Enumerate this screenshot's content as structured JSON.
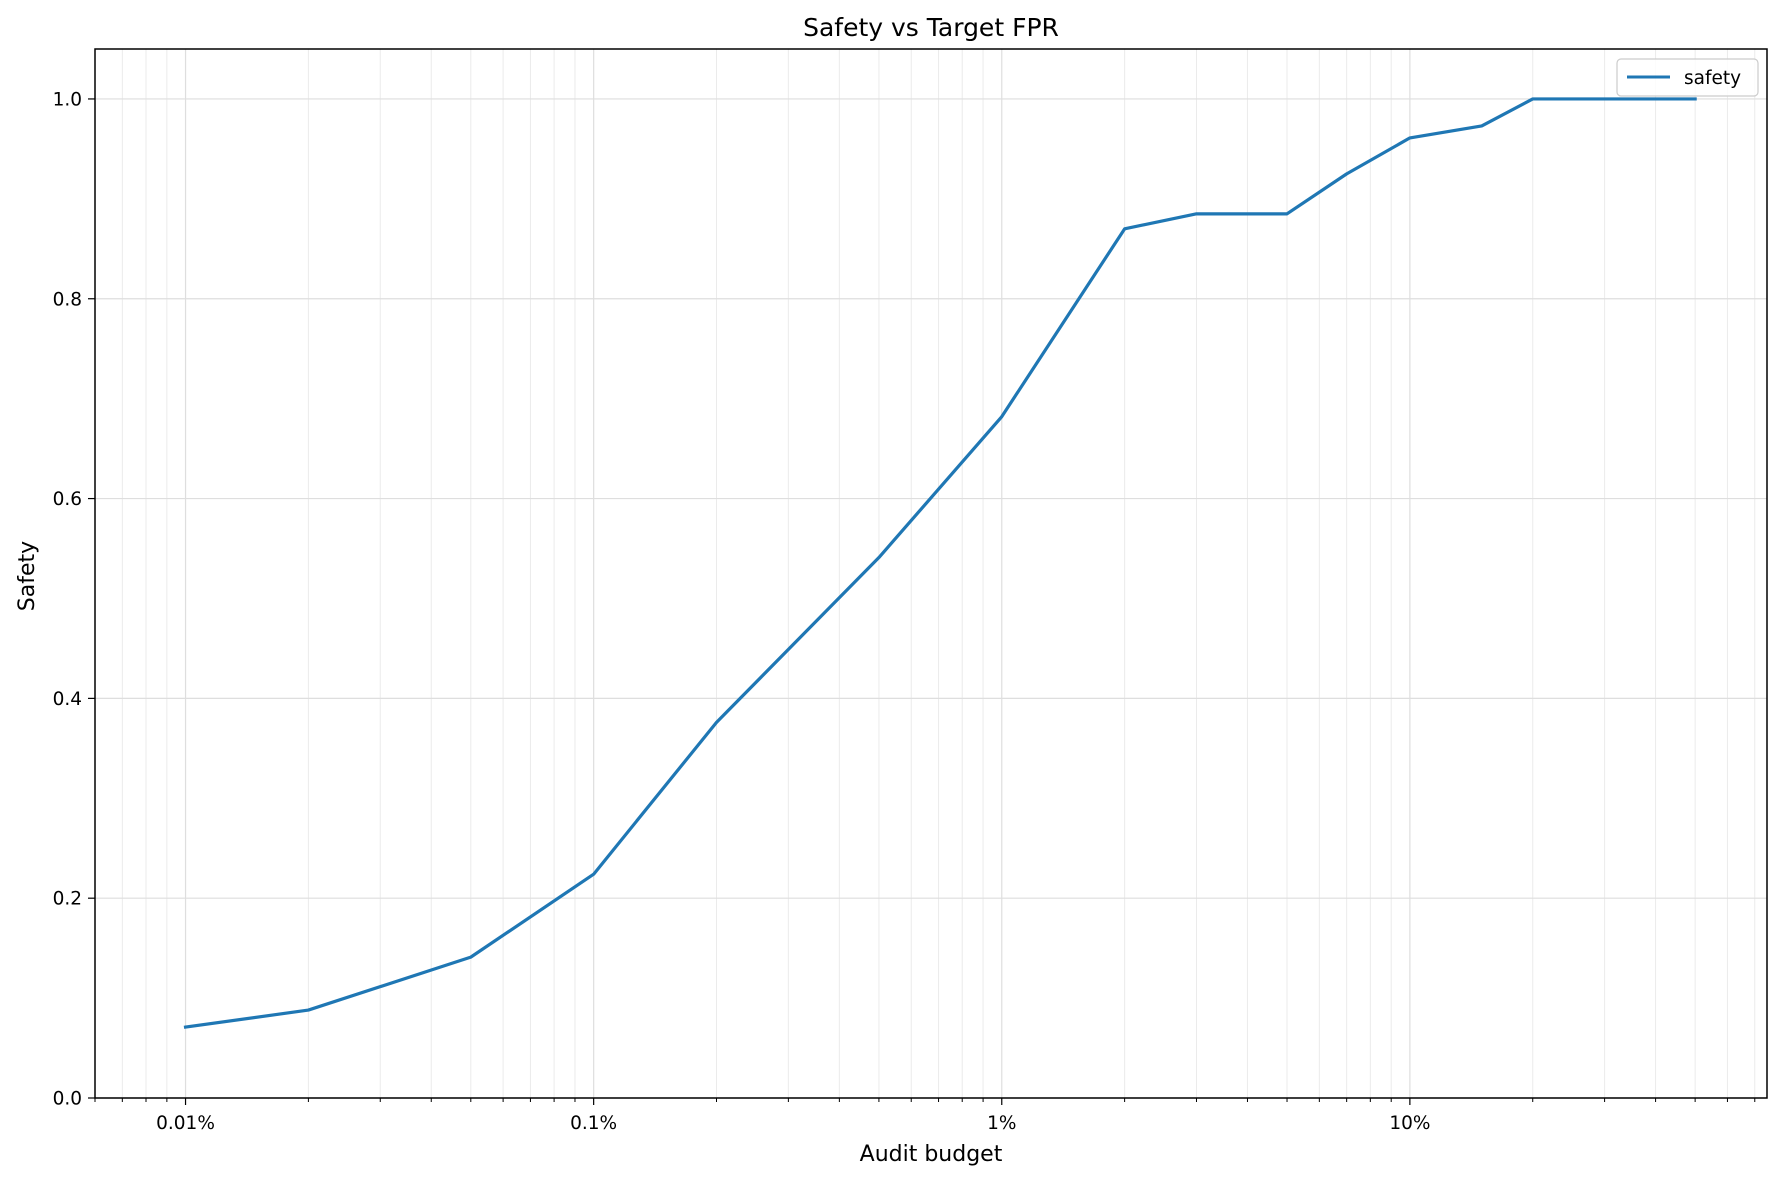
{
  "chart_data": {
    "type": "line",
    "title": "Safety vs Target FPR",
    "xlabel": "Audit budget",
    "ylabel": "Safety",
    "x_scale": "log",
    "xlim": [
      0.006,
      75
    ],
    "ylim": [
      0.0,
      1.05
    ],
    "grid": true,
    "legend_position": "top-right",
    "colors": {
      "series": "#1f77b4"
    },
    "x_ticks": [
      {
        "value": 0.01,
        "label": "0.01%"
      },
      {
        "value": 0.1,
        "label": "0.1%"
      },
      {
        "value": 1,
        "label": "1%"
      },
      {
        "value": 10,
        "label": "10%"
      }
    ],
    "y_ticks": [
      {
        "value": 0.0,
        "label": "0.0"
      },
      {
        "value": 0.2,
        "label": "0.2"
      },
      {
        "value": 0.4,
        "label": "0.4"
      },
      {
        "value": 0.6,
        "label": "0.6"
      },
      {
        "value": 0.8,
        "label": "0.8"
      },
      {
        "value": 1.0,
        "label": "1.0"
      }
    ],
    "series": [
      {
        "name": "safety",
        "x": [
          0.01,
          0.02,
          0.05,
          0.1,
          0.2,
          0.5,
          1,
          2,
          3,
          5,
          7,
          10,
          15,
          20,
          30,
          50
        ],
        "values": [
          0.071,
          0.088,
          0.141,
          0.224,
          0.376,
          0.541,
          0.682,
          0.87,
          0.885,
          0.885,
          0.925,
          0.961,
          0.973,
          1.0,
          1.0,
          1.0
        ]
      }
    ]
  }
}
